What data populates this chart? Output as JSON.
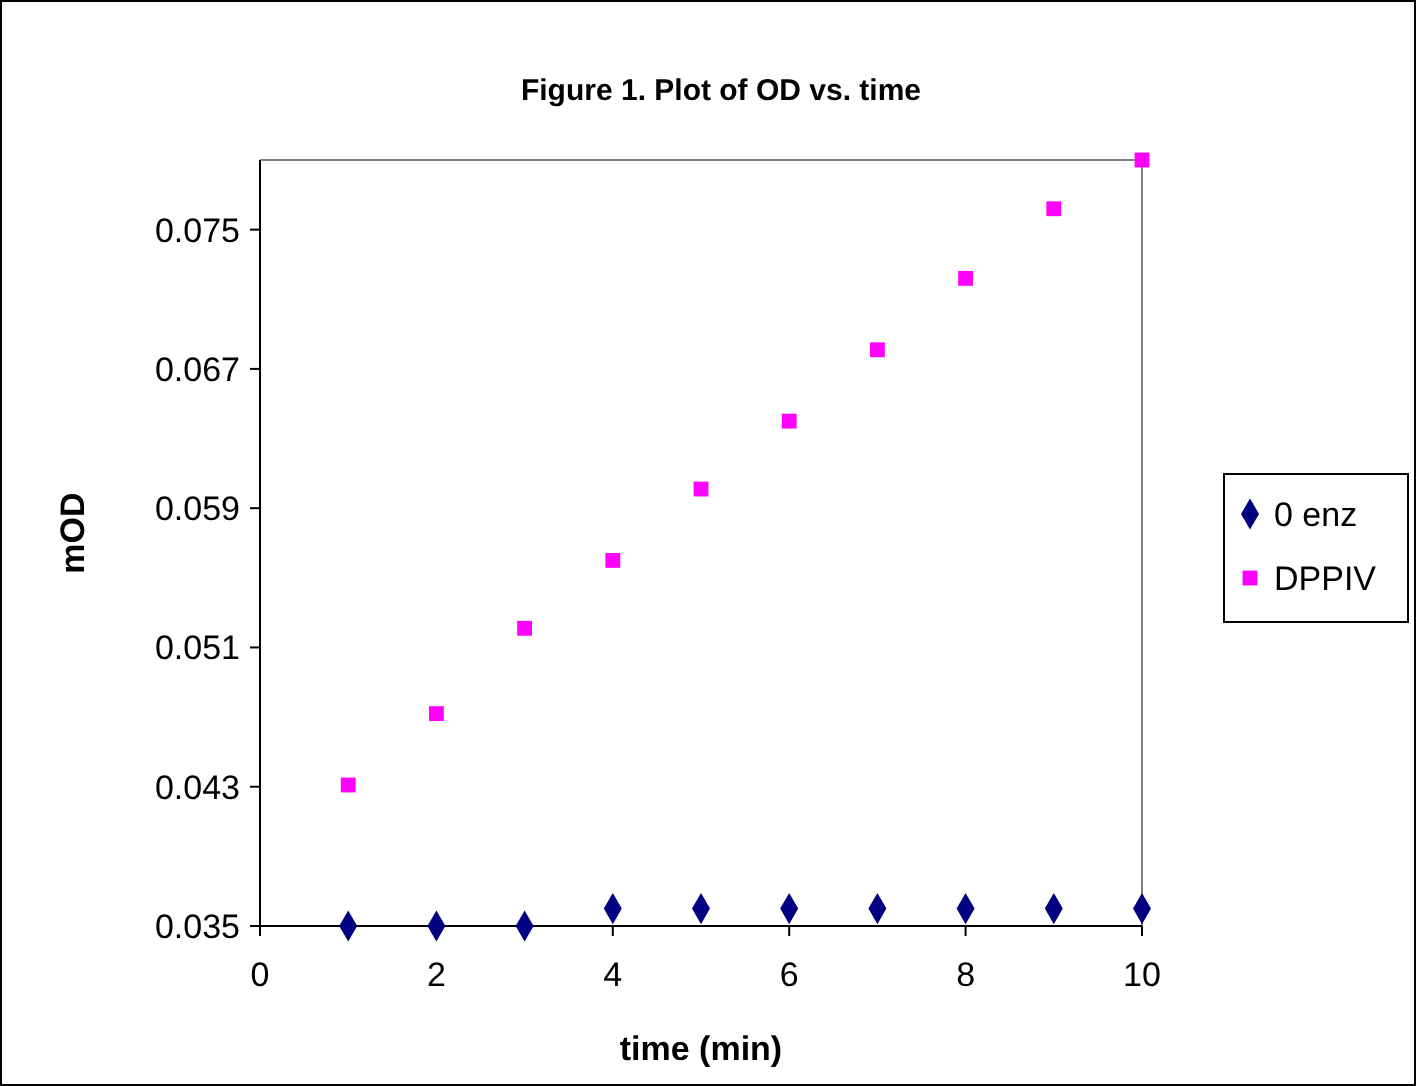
{
  "chart_data": {
    "type": "scatter",
    "title": "Figure 1. Plot of OD vs. time",
    "xlabel": "time (min)",
    "ylabel": "mOD",
    "x": [
      1,
      2,
      3,
      4,
      5,
      6,
      7,
      8,
      9,
      10
    ],
    "series": [
      {
        "name": "0 enz",
        "color": "#000080",
        "marker": "diamond",
        "values": [
          0.035,
          0.035,
          0.035,
          0.036,
          0.036,
          0.036,
          0.036,
          0.036,
          0.036,
          0.036
        ]
      },
      {
        "name": "DPPIV",
        "color": "#ff00ff",
        "marker": "square",
        "values": [
          0.0431,
          0.0472,
          0.0521,
          0.056,
          0.0601,
          0.064,
          0.0681,
          0.0722,
          0.0762,
          0.079
        ]
      }
    ],
    "xlim": [
      0,
      10
    ],
    "xticks": [
      0,
      2,
      4,
      6,
      8,
      10
    ],
    "ylim": [
      0.035,
      0.079
    ],
    "yticks": [
      0.035,
      0.043,
      0.051,
      0.059,
      0.067,
      0.075
    ],
    "grid": false,
    "legend": "right"
  }
}
